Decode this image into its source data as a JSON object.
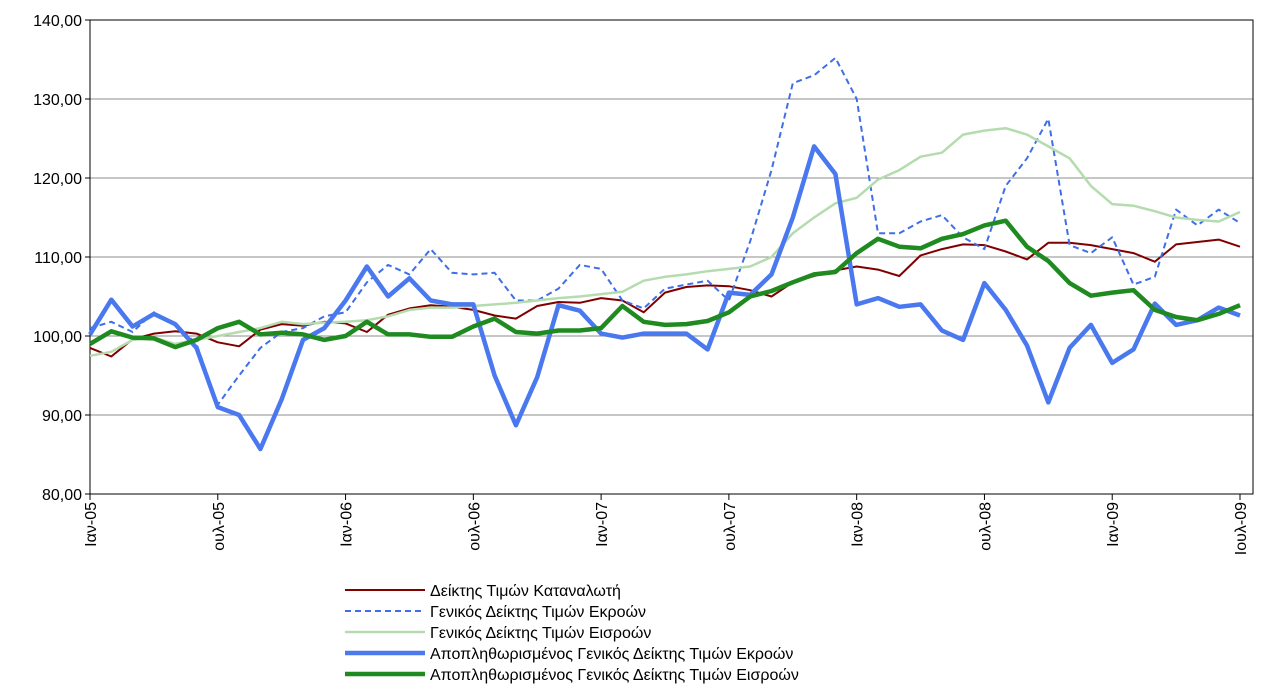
{
  "chart_data": {
    "type": "line",
    "categories": [
      "Ιαν-05",
      null,
      null,
      null,
      null,
      null,
      "ουλ-05",
      null,
      null,
      null,
      null,
      null,
      "Ιαν-06",
      null,
      null,
      null,
      null,
      null,
      "ουλ-06",
      null,
      null,
      null,
      null,
      null,
      "Ιαν-07",
      null,
      null,
      null,
      null,
      null,
      "ουλ-07",
      null,
      null,
      null,
      null,
      null,
      "Ιαν-08",
      null,
      null,
      null,
      null,
      null,
      "ουλ-08",
      null,
      null,
      null,
      null,
      null,
      "Ιαν-09",
      null,
      null,
      null,
      null,
      null,
      "Ιουλ-09"
    ],
    "ylim": [
      80,
      140
    ],
    "yticks": [
      {
        "value": 80,
        "label": "80,00"
      },
      {
        "value": 90,
        "label": "90,00"
      },
      {
        "value": 100,
        "label": "100,00"
      },
      {
        "value": 110,
        "label": "110,00"
      },
      {
        "value": 120,
        "label": "120,00"
      },
      {
        "value": 130,
        "label": "130,00"
      },
      {
        "value": 140,
        "label": "140,00"
      }
    ],
    "grid": true,
    "legend": "bottom",
    "series": [
      {
        "name": "Δείκτης Τιμών Καταναλωτή",
        "color": "#800000",
        "style": "solid",
        "width": 2,
        "values": [
          98.5,
          97.4,
          99.6,
          100.3,
          100.6,
          100.3,
          99.2,
          98.7,
          100.8,
          101.5,
          101.3,
          101.8,
          101.6,
          100.5,
          102.7,
          103.5,
          103.9,
          103.7,
          103.3,
          102.6,
          102.2,
          103.8,
          104.3,
          104.2,
          104.8,
          104.5,
          103.0,
          105.5,
          106.2,
          106.4,
          106.3,
          105.8,
          105.0,
          106.8,
          107.6,
          108.3,
          108.8,
          108.4,
          107.6,
          110.2,
          111.0,
          111.6,
          111.5,
          110.7,
          109.7,
          111.8,
          111.8,
          111.5,
          111.0,
          110.5,
          109.4,
          111.6,
          111.9,
          112.2,
          111.3
        ]
      },
      {
        "name": "Γενικός Δείκτης Τιμών Εκροών",
        "color": "#3f6ee8",
        "style": "dashed",
        "width": 2,
        "values": [
          101.0,
          101.8,
          100.5,
          103.0,
          101.5,
          99.0,
          91.3,
          95.0,
          98.5,
          100.5,
          101.0,
          102.5,
          103.0,
          106.8,
          109.0,
          107.8,
          111.0,
          108.0,
          107.8,
          108.0,
          104.5,
          104.5,
          106.0,
          109.0,
          108.5,
          104.5,
          103.5,
          106.0,
          106.5,
          107.0,
          104.5,
          112.0,
          121.0,
          132.0,
          133.0,
          135.2,
          130.0,
          113.0,
          113.0,
          114.5,
          115.3,
          112.5,
          111.0,
          119.0,
          122.5,
          127.5,
          111.5,
          110.5,
          112.5,
          106.5,
          107.5,
          116.0,
          114.0,
          116.0,
          114.3
        ]
      },
      {
        "name": "Γενικός Δείκτης Τιμών Εισροών",
        "color": "#b5dcae",
        "style": "solid",
        "width": 2.5,
        "values": [
          97.5,
          98.0,
          99.5,
          99.8,
          99.0,
          99.5,
          100.0,
          100.5,
          101.0,
          101.8,
          101.5,
          101.7,
          101.8,
          102.0,
          102.5,
          103.3,
          103.6,
          103.6,
          103.8,
          104.0,
          104.2,
          104.5,
          104.8,
          105.0,
          105.3,
          105.6,
          107.0,
          107.5,
          107.8,
          108.2,
          108.5,
          108.8,
          110.0,
          113.0,
          115.0,
          116.8,
          117.5,
          119.8,
          121.0,
          122.7,
          123.2,
          125.5,
          126.0,
          126.3,
          125.5,
          124.0,
          122.5,
          119.0,
          116.7,
          116.5,
          115.8,
          115.0,
          114.7,
          114.5,
          115.7
        ]
      },
      {
        "name": "Αποπληθωρισμένος Γενικός Δείκτης Τιμών Εκροών",
        "color": "#4a78ee",
        "style": "solid",
        "width": 4.5,
        "values": [
          100.2,
          104.6,
          101.2,
          102.8,
          101.5,
          98.5,
          91.0,
          90.0,
          85.7,
          92.0,
          99.5,
          101.0,
          104.5,
          108.8,
          105.0,
          107.3,
          104.5,
          104.0,
          104.0,
          95.0,
          88.7,
          94.8,
          103.9,
          103.2,
          100.3,
          99.8,
          100.3,
          100.3,
          100.3,
          98.3,
          105.5,
          105.2,
          107.8,
          115.0,
          124.0,
          120.5,
          104.0,
          104.8,
          103.7,
          104.0,
          100.7,
          99.5,
          106.7,
          103.3,
          98.8,
          91.6,
          98.5,
          101.4,
          96.6,
          98.3,
          104.1,
          101.4,
          102.0,
          103.6,
          102.6
        ]
      },
      {
        "name": "Αποπληθωρισμένος Γενικός Δείκτης Τιμών Εισροών",
        "color": "#1f8a1f",
        "style": "solid",
        "width": 4.5,
        "values": [
          99.0,
          100.6,
          99.8,
          99.7,
          98.6,
          99.5,
          101.0,
          101.8,
          100.2,
          100.4,
          100.2,
          99.5,
          100.0,
          101.8,
          100.2,
          100.2,
          99.9,
          99.9,
          101.2,
          102.2,
          100.5,
          100.3,
          100.7,
          100.7,
          101.0,
          103.8,
          101.8,
          101.4,
          101.5,
          101.9,
          103.0,
          105.0,
          105.7,
          106.8,
          107.8,
          108.1,
          110.5,
          112.3,
          111.3,
          111.1,
          112.3,
          112.9,
          114.0,
          114.6,
          111.3,
          109.5,
          106.7,
          105.1,
          105.5,
          105.8,
          103.3,
          102.4,
          102.0,
          102.8,
          103.9
        ]
      }
    ]
  }
}
